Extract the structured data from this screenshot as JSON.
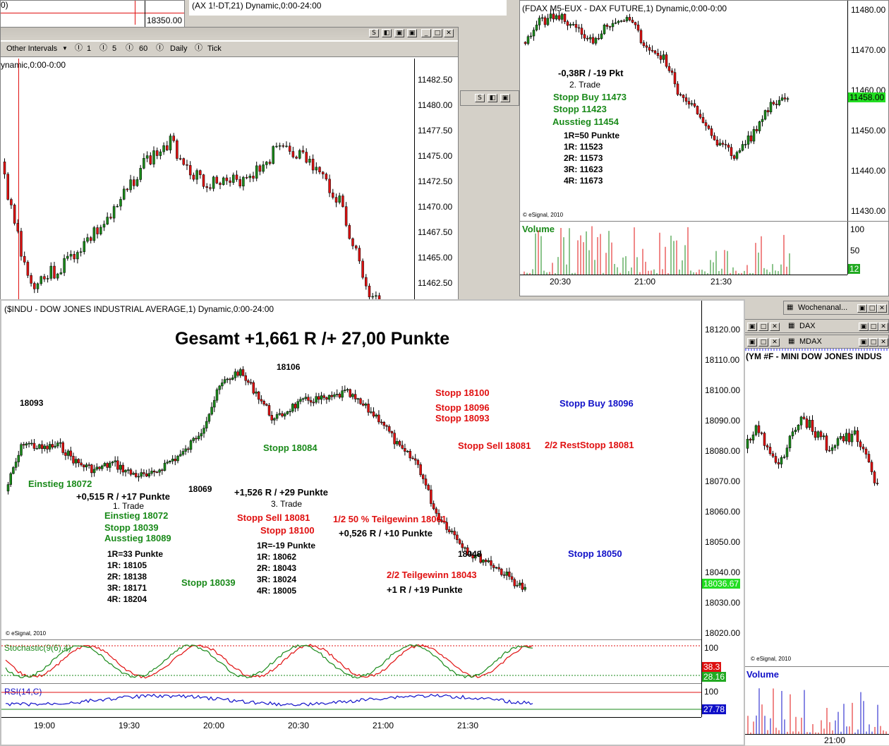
{
  "topleft_chart": {
    "title_fragment": "(AX 1!-DT,21) Dynamic,0:00-24:00",
    "corner_label": "0)",
    "price_tag": "18350.00"
  },
  "left_chart": {
    "toolbar": {
      "other_intervals": "Other Intervals",
      "intervals": [
        "1",
        "5",
        "60",
        "Daily",
        "Tick"
      ]
    },
    "title": "ynamic,0:00-0:00",
    "y_ticks": [
      "11482.50",
      "11480.00",
      "11477.50",
      "11475.00",
      "11472.50",
      "11470.00",
      "11467.50",
      "11465.00",
      "11462.50"
    ]
  },
  "fdax_chart": {
    "title": "(FDAX M5-EUX - DAX FUTURE,1) Dynamic,0:00-0:00",
    "y_ticks": [
      "11480.00",
      "11470.00",
      "11460.00",
      "11450.00",
      "11440.00",
      "11430.00"
    ],
    "last_price": "11458.00",
    "copyright": "© eSignal, 2010",
    "volume_label": "Volume",
    "volume_ticks": [
      "100",
      "50"
    ],
    "volume_last": "12",
    "x_ticks": [
      "20:30",
      "21:00",
      "21:30"
    ],
    "annotations": {
      "result": "-0,38R / -19 Pkt",
      "trade": "2. Trade",
      "stopp_buy": "Stopp Buy 11473",
      "stopp": "Stopp 11423",
      "ausstieg": "Ausstieg 11454",
      "r": "1R=50 Punkte",
      "r1": "1R: 11523",
      "r2": "2R: 11573",
      "r3": "3R: 11623",
      "r4": "4R: 11673"
    }
  },
  "indu_chart": {
    "title": "($INDU - DOW JONES INDUSTRIAL AVERAGE,1) Dynamic,0:00-24:00",
    "headline": "Gesamt +1,661 R /+ 27,00 Punkte",
    "y_ticks": [
      "18120.00",
      "18110.00",
      "18100.00",
      "18090.00",
      "18080.00",
      "18070.00",
      "18060.00",
      "18050.00",
      "18040.00",
      "18030.00",
      "18020.00"
    ],
    "last_price": "18036.67",
    "copyright": "© eSignal, 2010",
    "x_ticks": [
      "19:00",
      "19:30",
      "20:00",
      "20:30",
      "21:00",
      "21:30"
    ],
    "stoch_label": "Stochastic(9(6),4)",
    "stoch_ticks": [
      "100"
    ],
    "stoch_val1": "38.3",
    "stoch_val2": "28.16",
    "rsi_label": "RSI(14,C)",
    "rsi_ticks": [
      "100"
    ],
    "rsi_val": "27.78",
    "annotations": {
      "p18093": "18093",
      "p18106": "18106",
      "p18069": "18069",
      "p18048": "18048",
      "einstieg1": "Einstieg 18072",
      "res1": "+0,515 R / +17 Punkte",
      "trade1": "1. Trade",
      "einstieg1b": "Einstieg 18072",
      "stopp1": "Stopp 18039",
      "ausstieg1": "Ausstieg 18089",
      "r1_def": "1R=33 Punkte",
      "r1_1": "1R: 18105",
      "r1_2": "2R: 18138",
      "r1_3": "3R: 18171",
      "r1_4": "4R: 18204",
      "stopp18039": "Stopp 18039",
      "stopp18084": "Stopp 18084",
      "res3": "+1,526 R / +29 Punkte",
      "trade3": "3. Trade",
      "stoppsell3": "Stopp Sell 18081",
      "stopp3": "Stopp 18100",
      "r3_def": "1R=-19 Punkte",
      "r3_1": "1R: 18062",
      "r3_2": "2R: 18043",
      "r3_3": "3R: 18024",
      "r3_4": "4R: 18005",
      "stopp18100": "Stopp 18100",
      "stopp18096": "Stopp 18096",
      "stopp18093": "Stopp 18093",
      "stoppsell18081": "Stopp Sell 18081",
      "reststopp": "2/2 RestStopp 18081",
      "stoppbuy": "Stopp Buy 18096",
      "teilgewinn1": "1/2 50 % Teilgewinn 18061",
      "res_tg1": "+0,526 R / +10 Punkte",
      "stopp18050": "Stopp 18050",
      "teilgewinn2": "2/2 Teilgewinn 18043",
      "res_tg2": "+1 R / +19 Punkte"
    }
  },
  "right_panel": {
    "wochen": "Wochenanal...",
    "dax": "DAX",
    "mdax": "MDAX",
    "ym_title": "(YM #F - MINI DOW JONES INDUS",
    "copyright": "© eSignal, 2010",
    "volume_label": "Volume",
    "x_tick": "21:00"
  },
  "colors": {
    "up": "#1a8a1a",
    "down": "#e01010",
    "rsi": "#1010c8",
    "price_green": "#22dd22",
    "price_red": "#dd1111",
    "price_blue": "#1010c8"
  }
}
